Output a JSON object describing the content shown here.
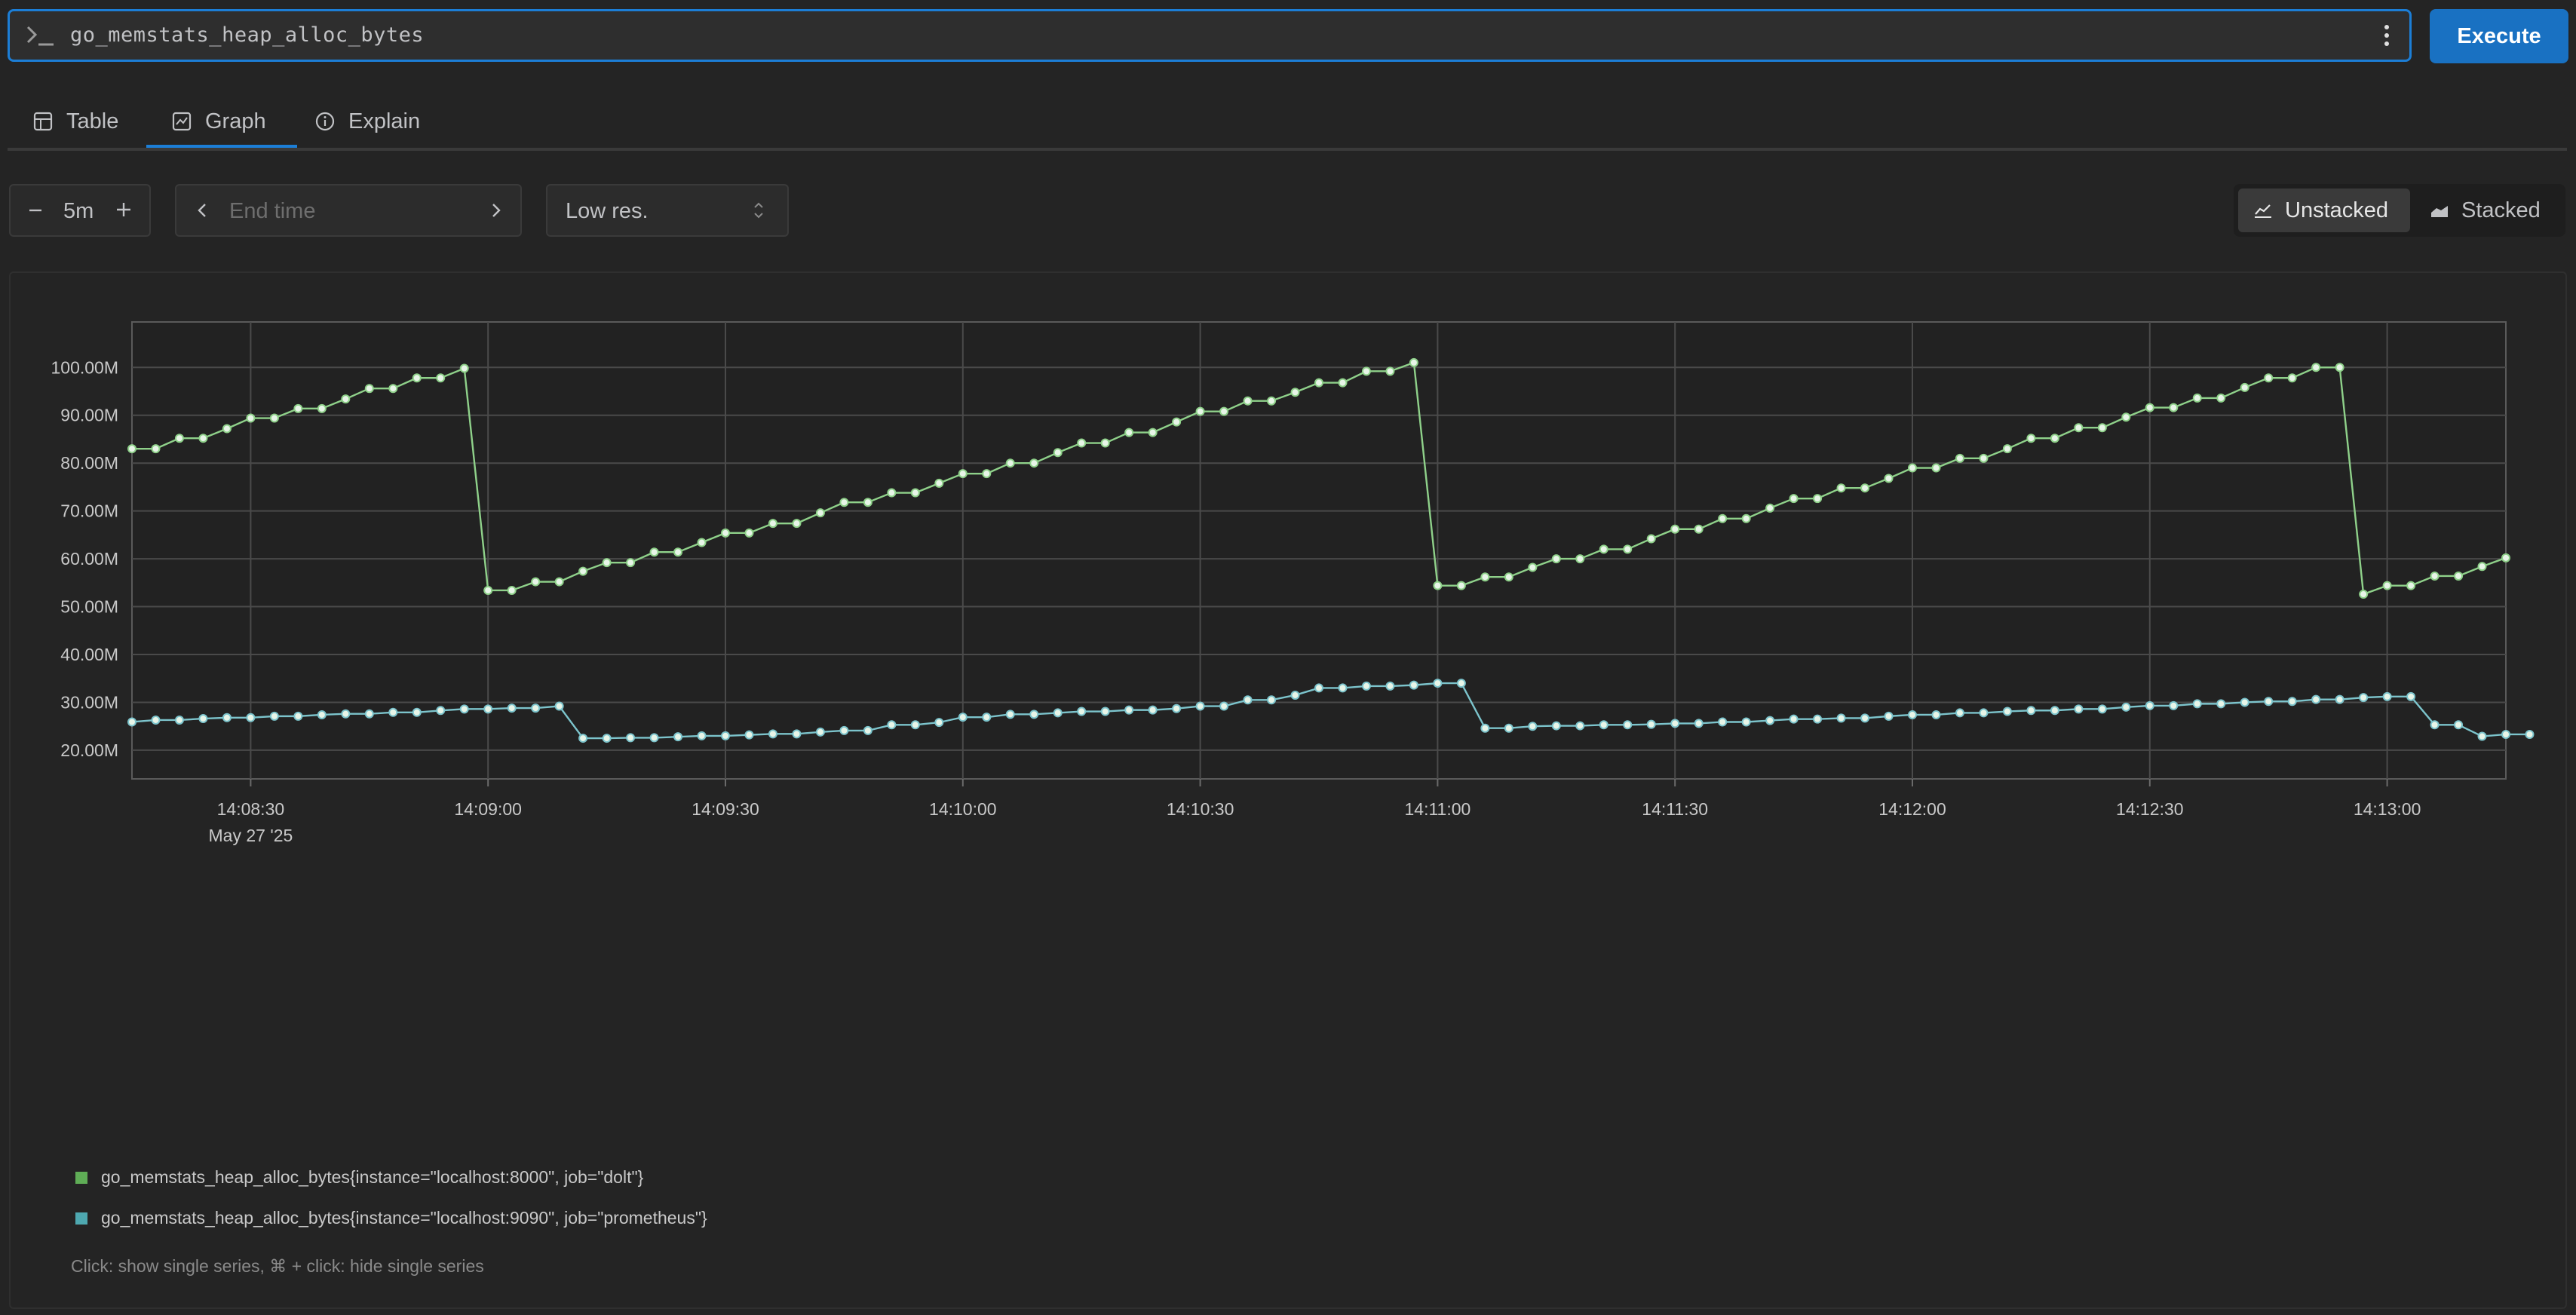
{
  "query": {
    "expression": "go_memstats_heap_alloc_bytes",
    "execute_label": "Execute",
    "prompt_icon": "terminal-prompt-icon",
    "menu_icon": "kebab-menu-icon"
  },
  "tabs": [
    {
      "label": "Table",
      "icon": "table-icon",
      "active": false
    },
    {
      "label": "Graph",
      "icon": "graph-icon",
      "active": true
    },
    {
      "label": "Explain",
      "icon": "info-icon",
      "active": false
    }
  ],
  "controls": {
    "range": "5m",
    "end_time_placeholder": "End time",
    "resolution": "Low res.",
    "stack_options": [
      "Unstacked",
      "Stacked"
    ],
    "stack_selected": "Unstacked"
  },
  "colors": {
    "accent": "#1c7ed6",
    "series_dolt": "#8fd18a",
    "series_prometheus": "#7cc4cc",
    "swatch_dolt": "#5fad56",
    "swatch_prometheus": "#4ea8b0"
  },
  "legend": [
    {
      "label": "go_memstats_heap_alloc_bytes{instance=\"localhost:8000\", job=\"dolt\"}"
    },
    {
      "label": "go_memstats_heap_alloc_bytes{instance=\"localhost:9090\", job=\"prometheus\"}"
    }
  ],
  "hint": "Click: show single series, ⌘ + click: hide single series",
  "chart_data": {
    "type": "line",
    "x_unit": "seconds since 14:08:15",
    "x_start_time": "14:08:15",
    "xlim": [
      0,
      300
    ],
    "ylim": [
      14,
      109.5
    ],
    "y_ticks": [
      20,
      30,
      40,
      50,
      60,
      70,
      80,
      90,
      100
    ],
    "y_tick_labels": [
      "20.00M",
      "30.00M",
      "40.00M",
      "50.00M",
      "60.00M",
      "70.00M",
      "80.00M",
      "90.00M",
      "100.00M"
    ],
    "x_ticks": [
      15,
      45,
      75,
      105,
      135,
      165,
      195,
      225,
      255,
      285
    ],
    "x_tick_labels": [
      "14:08:30",
      "14:09:00",
      "14:09:30",
      "14:10:00",
      "14:10:30",
      "14:11:00",
      "14:11:30",
      "14:12:00",
      "14:12:30",
      "14:13:00"
    ],
    "x_date_label": "May 27 '25",
    "grid": true,
    "legend_position": "bottom-left",
    "series": [
      {
        "name": "go_memstats_heap_alloc_bytes{instance=\"localhost:8000\", job=\"dolt\"}",
        "step": 3,
        "values": [
          83.0,
          83.0,
          85.2,
          85.2,
          87.2,
          89.4,
          89.4,
          91.4,
          91.4,
          93.4,
          95.6,
          95.6,
          97.8,
          97.8,
          99.8,
          53.4,
          53.4,
          55.2,
          55.2,
          57.4,
          59.2,
          59.2,
          61.4,
          61.4,
          63.4,
          65.4,
          65.4,
          67.4,
          67.4,
          69.6,
          71.8,
          71.8,
          73.8,
          73.8,
          75.8,
          77.8,
          77.8,
          80.0,
          80.0,
          82.2,
          84.2,
          84.2,
          86.4,
          86.4,
          88.6,
          90.8,
          90.8,
          93.0,
          93.0,
          94.8,
          96.8,
          96.8,
          99.2,
          99.2,
          101.0,
          54.4,
          54.4,
          56.2,
          56.2,
          58.2,
          60.0,
          60.0,
          62.0,
          62.0,
          64.2,
          66.2,
          66.2,
          68.4,
          68.4,
          70.6,
          72.6,
          72.6,
          74.8,
          74.8,
          76.8,
          79.0,
          79.0,
          81.0,
          81.0,
          83.0,
          85.2,
          85.2,
          87.4,
          87.4,
          89.6,
          91.6,
          91.6,
          93.6,
          93.6,
          95.8,
          97.8,
          97.8,
          100.0,
          100.0,
          52.6,
          54.4,
          54.4,
          56.4,
          56.4,
          58.4,
          60.2
        ]
      },
      {
        "name": "go_memstats_heap_alloc_bytes{instance=\"localhost:9090\", job=\"prometheus\"}",
        "step": 3,
        "values": [
          25.9,
          26.3,
          26.3,
          26.6,
          26.8,
          26.8,
          27.1,
          27.1,
          27.4,
          27.6,
          27.6,
          27.9,
          27.9,
          28.3,
          28.6,
          28.6,
          28.8,
          28.8,
          29.2,
          22.5,
          22.5,
          22.6,
          22.6,
          22.8,
          23.0,
          23.0,
          23.2,
          23.4,
          23.4,
          23.8,
          24.1,
          24.1,
          25.3,
          25.3,
          25.8,
          26.9,
          26.9,
          27.5,
          27.5,
          27.8,
          28.1,
          28.1,
          28.4,
          28.4,
          28.7,
          29.2,
          29.2,
          30.5,
          30.5,
          31.5,
          33.0,
          33.0,
          33.4,
          33.4,
          33.6,
          34.0,
          34.0,
          24.6,
          24.6,
          25.0,
          25.1,
          25.1,
          25.3,
          25.3,
          25.4,
          25.6,
          25.6,
          25.9,
          25.9,
          26.2,
          26.5,
          26.5,
          26.7,
          26.7,
          27.1,
          27.4,
          27.4,
          27.8,
          27.8,
          28.1,
          28.3,
          28.3,
          28.6,
          28.6,
          29.0,
          29.3,
          29.3,
          29.7,
          29.7,
          30.0,
          30.2,
          30.2,
          30.6,
          30.6,
          31.0,
          31.2,
          31.2,
          25.3,
          25.3,
          22.9,
          23.3,
          23.3
        ]
      }
    ]
  }
}
